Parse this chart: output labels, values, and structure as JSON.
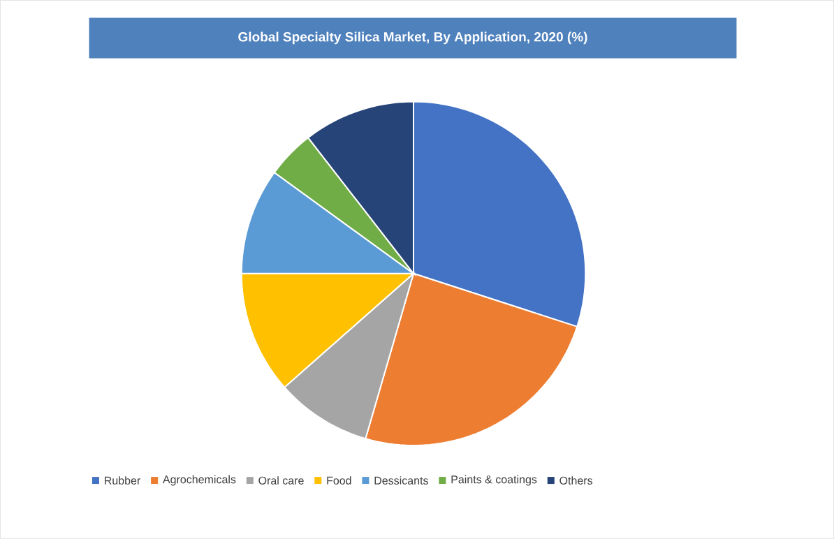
{
  "chart_data": {
    "type": "pie",
    "title": "Global Specialty Silica Market, By Application, 2020 (%)",
    "categories": [
      "Rubber",
      "Agrochemicals",
      "Oral care",
      "Food",
      "Dessicants",
      "Paints & coatings",
      "Others"
    ],
    "values": [
      30,
      24.5,
      9,
      11.5,
      10,
      4.5,
      10.5
    ],
    "colors": [
      "#4472c4",
      "#ed7d31",
      "#a5a5a5",
      "#ffc000",
      "#5b9bd5",
      "#70ad47",
      "#264478"
    ],
    "legend": "bottom"
  }
}
